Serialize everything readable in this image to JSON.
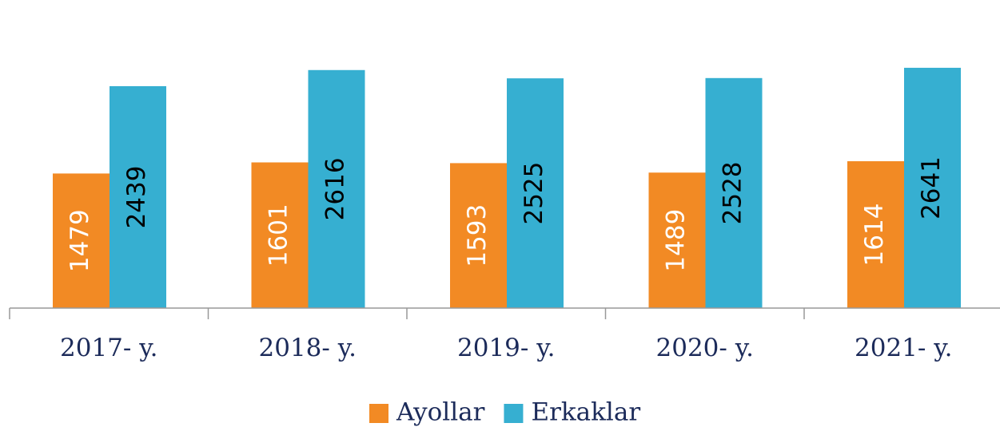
{
  "chart_data": {
    "type": "bar",
    "categories": [
      "2017- y.",
      "2018- y.",
      "2019- y.",
      "2020- y.",
      "2021- y."
    ],
    "series": [
      {
        "name": "Ayollar",
        "color": "#f28a24",
        "label_color": "#ffffff",
        "values": [
          1479,
          1601,
          1593,
          1489,
          1614
        ]
      },
      {
        "name": "Erkaklar",
        "color": "#36afd1",
        "label_color": "#000000",
        "values": [
          2439,
          2616,
          2525,
          2528,
          2641
        ]
      }
    ],
    "ylim": [
      0,
      3000
    ],
    "legend": "bottom"
  }
}
